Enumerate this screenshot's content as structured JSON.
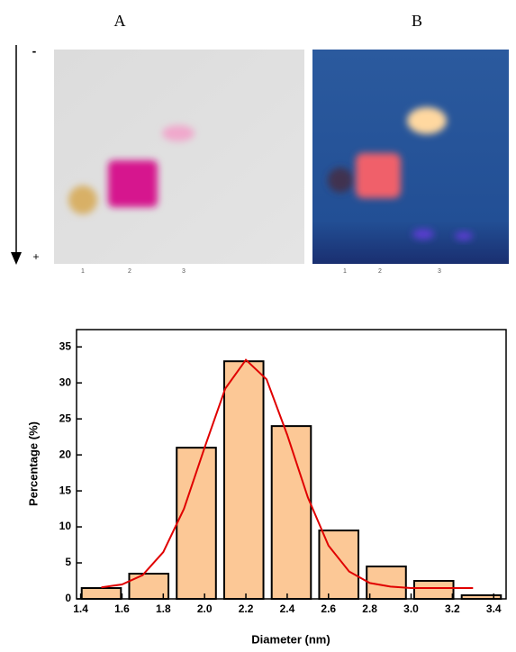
{
  "panels": {
    "left_title": "A",
    "right_title": "B",
    "top_sign": "-",
    "bottom_sign": "+",
    "left_lanes": [
      "1",
      "2",
      "3"
    ],
    "right_lanes": [
      "1",
      "2",
      "3"
    ]
  },
  "chart_data": {
    "type": "bar",
    "x": [
      1.5,
      1.73,
      1.96,
      2.19,
      2.42,
      2.65,
      2.88,
      3.11,
      3.34
    ],
    "values": [
      1.5,
      3.5,
      21,
      33,
      24,
      9.5,
      4.5,
      2.5,
      0.5
    ],
    "color": "#fcc896",
    "edge_color": "#000000",
    "fit": {
      "type": "line",
      "color": "#e00000",
      "x": [
        1.5,
        1.6,
        1.7,
        1.8,
        1.9,
        2.0,
        2.1,
        2.2,
        2.3,
        2.4,
        2.5,
        2.6,
        2.7,
        2.8,
        2.9,
        3.0,
        3.1,
        3.2,
        3.3
      ],
      "values": [
        1.6,
        2.0,
        3.3,
        6.5,
        12.5,
        21.0,
        29.2,
        33.2,
        30.5,
        22.8,
        14.1,
        7.4,
        3.8,
        2.2,
        1.7,
        1.5,
        1.5,
        1.5,
        1.5
      ]
    },
    "xlabel": "Diameter (nm)",
    "ylabel": "Percentage (%)",
    "xlim": [
      1.38,
      3.46
    ],
    "ylim": [
      0,
      37.4
    ],
    "xticks": [
      1.4,
      1.6,
      1.8,
      {
        "value": 2,
        "label": "2.0"
      },
      2.2,
      2.4,
      2.6,
      2.8,
      {
        "value": 3,
        "label": "3.0"
      },
      3.2,
      3.4
    ],
    "yticks": [
      0,
      5,
      10,
      15,
      20,
      25,
      30,
      35
    ]
  }
}
